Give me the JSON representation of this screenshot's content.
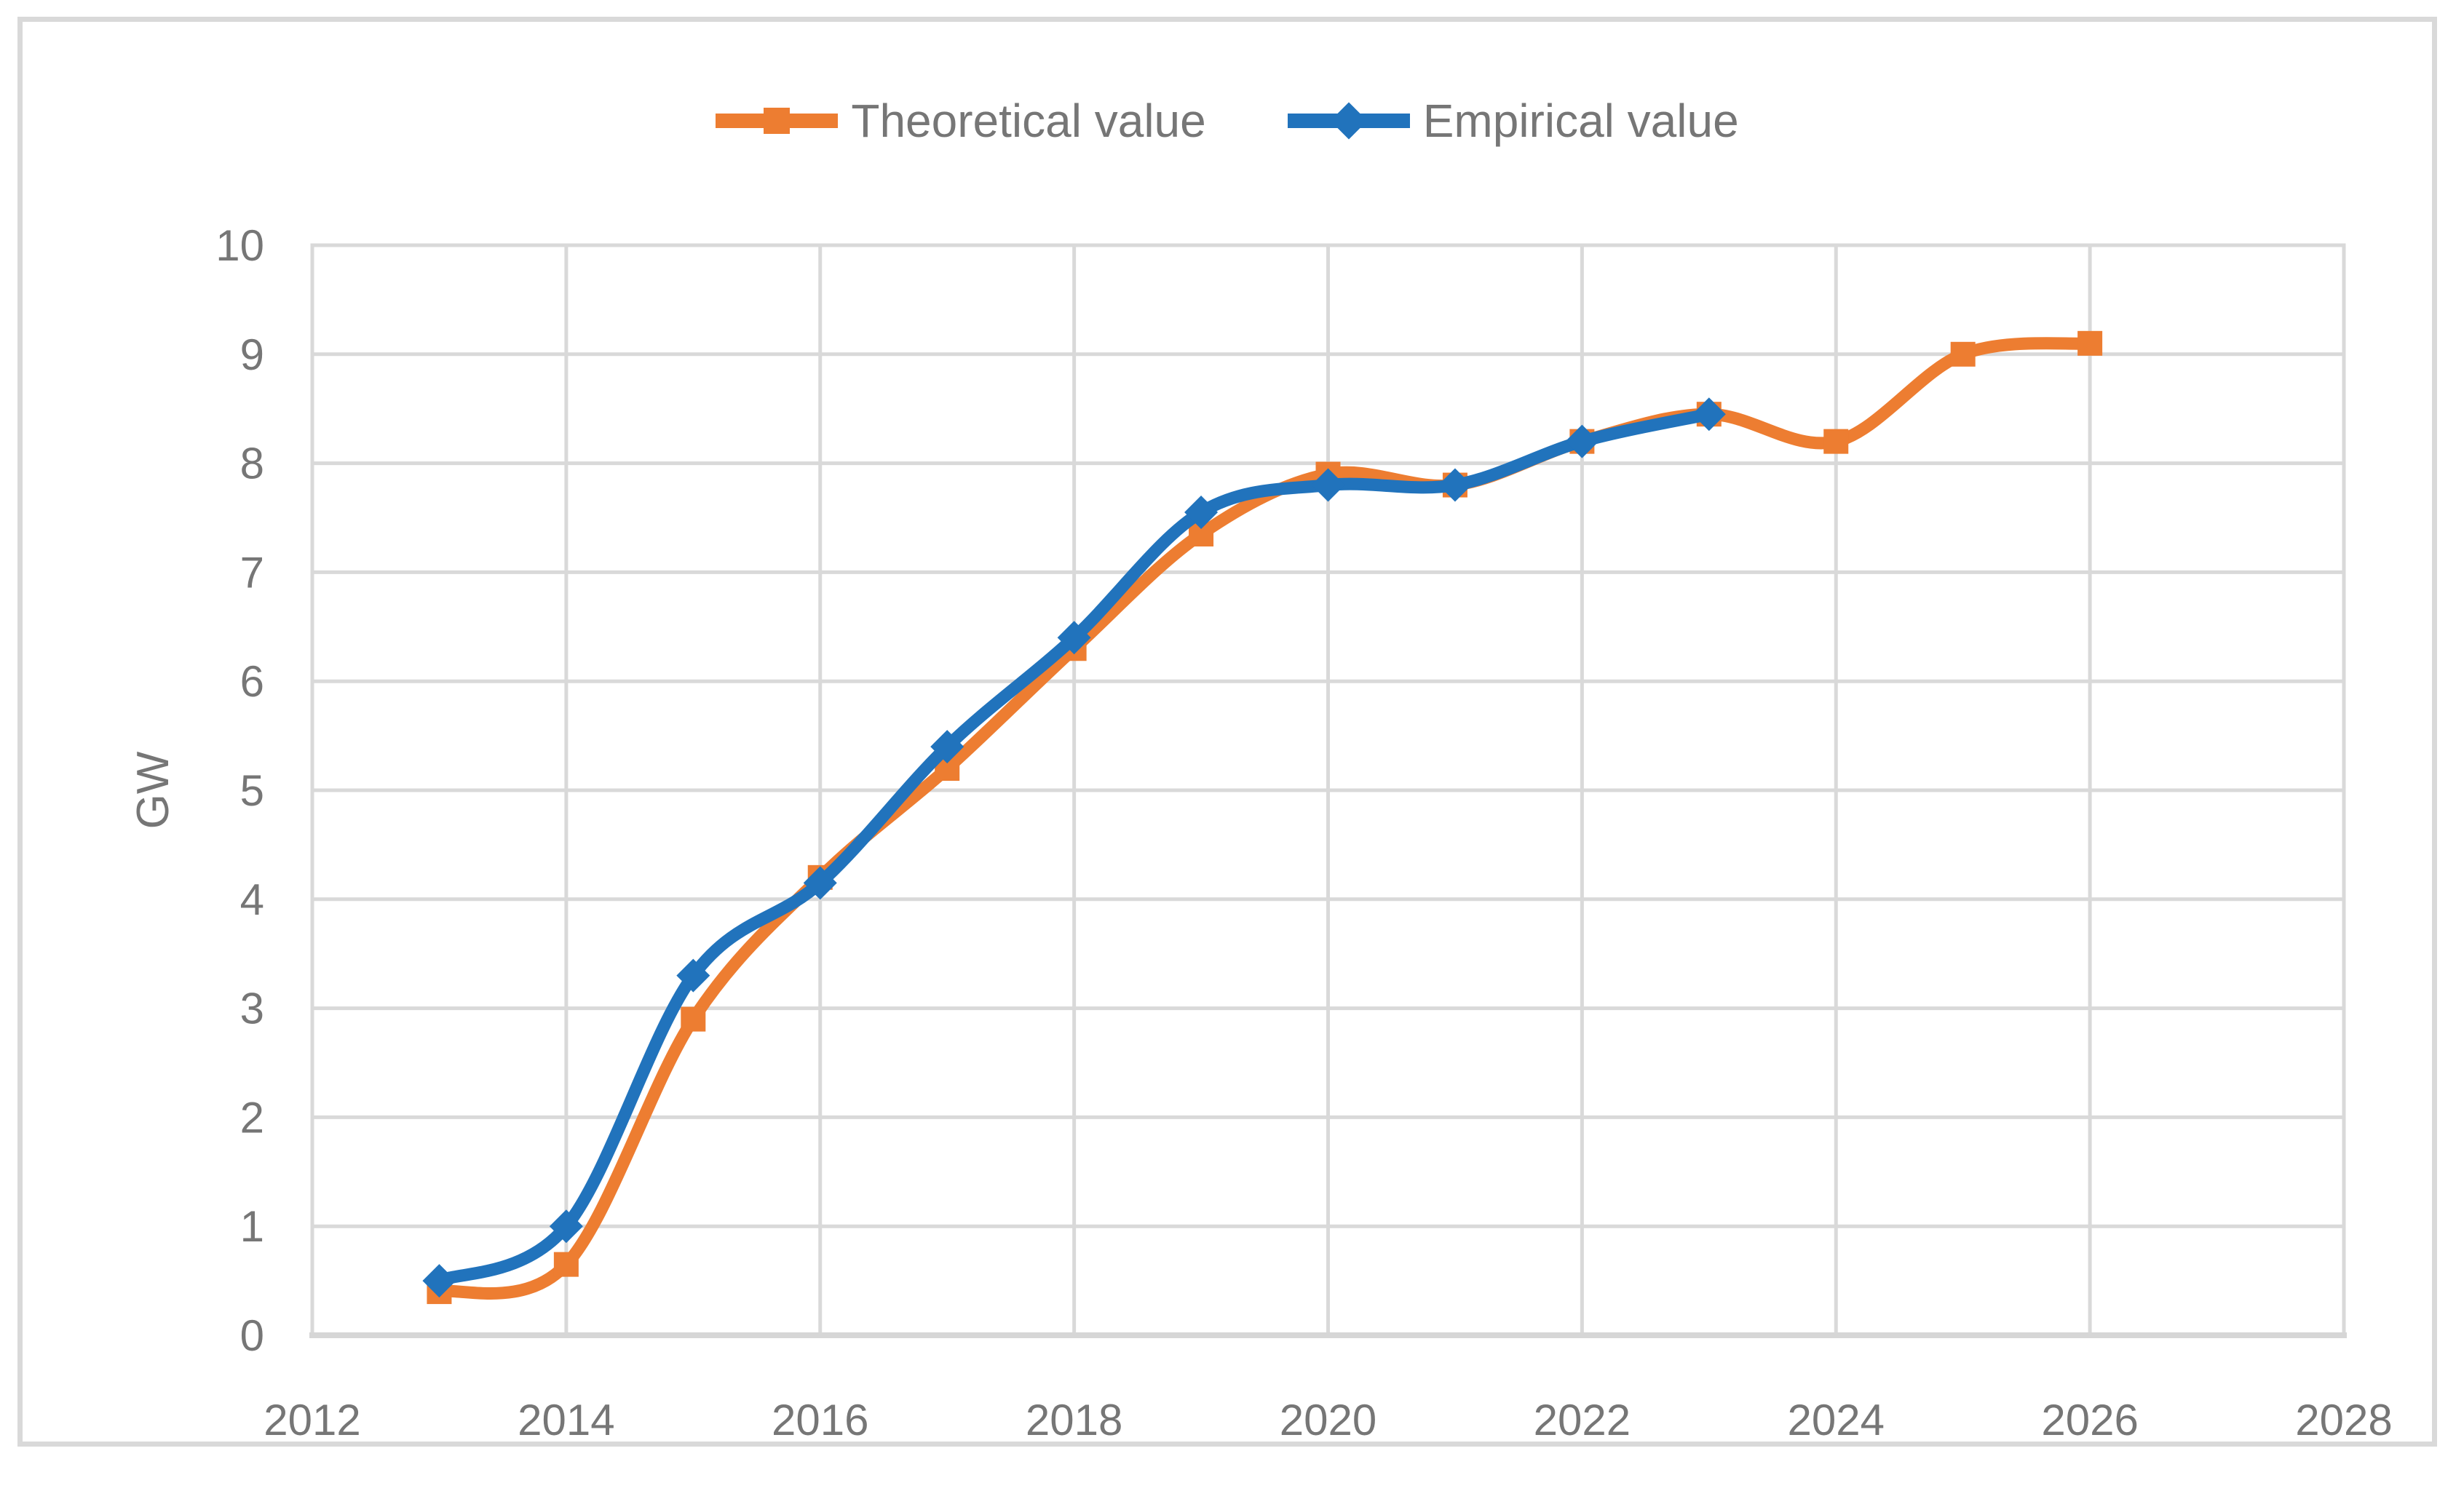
{
  "figure": {
    "background": "#ffffff",
    "border_color": "#d9d9d9"
  },
  "colors": {
    "grid": "#d9d9d9",
    "axis_line": "#d6d6d6",
    "text": "#767676",
    "theoretical": "#ED7D31",
    "empirical": "#2173BC"
  },
  "legend": {
    "items": [
      {
        "label": "Theoretical value",
        "marker": "square",
        "color": "#ED7D31"
      },
      {
        "label": "Empirical value",
        "marker": "diamond",
        "color": "#2173BC"
      }
    ]
  },
  "chart_data": {
    "type": "line",
    "title": "",
    "xlabel": "",
    "ylabel": "GW",
    "xlim": [
      2012,
      2028
    ],
    "ylim": [
      0,
      10
    ],
    "x_ticks": [
      "2012",
      "2014",
      "2016",
      "2018",
      "2020",
      "2022",
      "2024",
      "2026",
      "2028"
    ],
    "y_ticks": [
      "0",
      "1",
      "2",
      "3",
      "4",
      "5",
      "6",
      "7",
      "8",
      "9",
      "10"
    ],
    "grid": true,
    "smooth_lines": true,
    "legend_position": "top-center",
    "series": [
      {
        "name": "Theoretical value",
        "color": "#ED7D31",
        "marker": "square",
        "x": [
          2013,
          2014,
          2015,
          2016,
          2017,
          2018,
          2019,
          2020,
          2021,
          2022,
          2023,
          2024,
          2025,
          2026
        ],
        "values": [
          0.4,
          0.65,
          2.9,
          4.2,
          5.2,
          6.3,
          7.35,
          7.9,
          7.8,
          8.2,
          8.45,
          8.2,
          9.0,
          9.1
        ]
      },
      {
        "name": "Empirical value",
        "color": "#2173BC",
        "marker": "diamond",
        "x": [
          2013,
          2014,
          2015,
          2016,
          2017,
          2018,
          2019,
          2020,
          2021,
          2022,
          2023
        ],
        "values": [
          0.5,
          1.0,
          3.3,
          4.15,
          5.4,
          6.4,
          7.55,
          7.8,
          7.8,
          8.2,
          8.45
        ]
      }
    ]
  }
}
